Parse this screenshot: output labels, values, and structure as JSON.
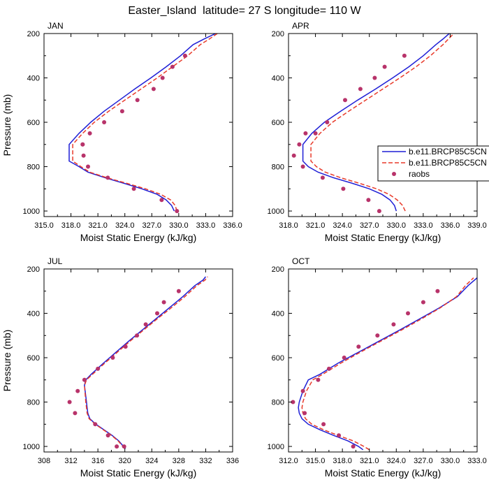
{
  "title": "Easter_Island  latitude= 27 S longitude= 110 W",
  "colors": {
    "model1": "#1f1fd6",
    "model2": "#e83a2a",
    "raobs": "#b8336a"
  },
  "legend": [
    "b.e11.BRCP85C5CN",
    "b.e11.BRCP85C5CN",
    "raobs"
  ],
  "chart_data": [
    {
      "type": "line",
      "panel": "JAN",
      "xlabel": "Moist Static Energy (kJ/kg)",
      "ylabel": "Pressure (mb)",
      "xlim": [
        315,
        336
      ],
      "ylim": [
        200,
        1025
      ],
      "y_inverted": true,
      "xticks": [
        "315.0",
        "318.0",
        "321.0",
        "324.0",
        "327.0",
        "330.0",
        "333.0",
        "336.0"
      ],
      "yticks": [
        "200",
        "400",
        "600",
        "800",
        "1000"
      ],
      "series": [
        {
          "name": "b.e11.BRCP85C5CN",
          "style": "solid",
          "x": [
            329.5,
            329.2,
            328.6,
            327.6,
            325.9,
            323.9,
            321.8,
            319.9,
            318.9,
            317.8,
            317.8,
            318.9,
            320.2,
            321.7,
            323.4,
            325.1,
            326.9,
            328.6,
            330.2,
            331.6,
            332.8,
            334.1
          ],
          "y": [
            1000,
            975,
            950,
            925,
            900,
            875,
            850,
            825,
            800,
            775,
            700,
            650,
            600,
            550,
            500,
            450,
            400,
            350,
            300,
            250,
            225,
            200
          ]
        },
        {
          "name": "b.e11.BRCP85C5CN",
          "style": "dashed",
          "x": [
            329.8,
            329.6,
            329.1,
            328.0,
            326.3,
            324.2,
            322.0,
            320.1,
            319.1,
            318.2,
            318.2,
            319.3,
            320.6,
            322.2,
            324.0,
            325.8,
            327.6,
            329.3,
            331.0,
            332.4,
            333.4,
            334.3
          ],
          "y": [
            1000,
            975,
            950,
            925,
            900,
            875,
            850,
            825,
            800,
            775,
            700,
            650,
            600,
            550,
            500,
            450,
            400,
            350,
            300,
            250,
            225,
            200
          ]
        },
        {
          "name": "raobs",
          "style": "dots",
          "x": [
            329.8,
            328.1,
            325.0,
            322.1,
            319.9,
            319.4,
            319.3,
            319.3,
            320.1,
            321.7,
            323.7,
            325.4,
            327.2,
            328.2,
            329.3,
            330.7
          ],
          "y": [
            1000,
            950,
            900,
            850,
            800,
            750,
            700,
            700,
            650,
            600,
            550,
            500,
            450,
            400,
            350,
            300
          ]
        }
      ]
    },
    {
      "type": "line",
      "panel": "APR",
      "xlabel": "Moist Static Energy (kJ/kg)",
      "ylabel": "",
      "xlim": [
        318,
        339
      ],
      "ylim": [
        200,
        1025
      ],
      "y_inverted": true,
      "xticks": [
        "318.0",
        "321.0",
        "324.0",
        "327.0",
        "330.0",
        "333.0",
        "336.0",
        "339.0"
      ],
      "yticks": [
        "200",
        "400",
        "600",
        "800",
        "1000"
      ],
      "series": [
        {
          "name": "b.e11.BRCP85C5CN",
          "style": "solid",
          "x": [
            330.0,
            329.8,
            329.3,
            328.4,
            327.0,
            325.1,
            323.0,
            321.3,
            320.2,
            319.6,
            319.6,
            320.6,
            322.0,
            323.8,
            325.7,
            327.7,
            329.6,
            331.4,
            333.0,
            334.4,
            335.2,
            335.9
          ],
          "y": [
            1000,
            975,
            950,
            925,
            900,
            875,
            850,
            825,
            800,
            775,
            700,
            650,
            600,
            550,
            500,
            450,
            400,
            350,
            300,
            250,
            225,
            200
          ]
        },
        {
          "name": "b.e11.BRCP85C5CN",
          "style": "dashed",
          "x": [
            331.0,
            330.7,
            330.1,
            329.2,
            327.8,
            325.9,
            323.8,
            322.1,
            321.1,
            320.5,
            320.5,
            321.5,
            322.9,
            324.7,
            326.6,
            328.5,
            330.4,
            332.2,
            333.8,
            335.2,
            335.8,
            336.4
          ],
          "y": [
            1000,
            975,
            950,
            925,
            900,
            875,
            850,
            825,
            800,
            775,
            700,
            650,
            600,
            550,
            500,
            450,
            400,
            350,
            300,
            250,
            225,
            200
          ]
        },
        {
          "name": "raobs",
          "style": "dots",
          "x": [
            328.1,
            326.9,
            324.1,
            321.8,
            319.6,
            318.6,
            319.2,
            319.9,
            321.0,
            322.3,
            324.3,
            326.0,
            327.6,
            328.7,
            330.9
          ],
          "y": [
            1000,
            950,
            900,
            850,
            800,
            750,
            700,
            650,
            650,
            600,
            500,
            450,
            400,
            350,
            300
          ]
        }
      ]
    },
    {
      "type": "line",
      "panel": "JUL",
      "xlabel": "Moist Static Energy (kJ/kg)",
      "ylabel": "Pressure (mb)",
      "xlim": [
        308,
        336
      ],
      "ylim": [
        200,
        1025
      ],
      "y_inverted": true,
      "xticks": [
        "308",
        "312",
        "316",
        "320",
        "324",
        "328",
        "332",
        "336"
      ],
      "yticks": [
        "200",
        "400",
        "600",
        "800",
        "1000"
      ],
      "series": [
        {
          "name": "b.e11.BRCP85C5CN",
          "style": "solid",
          "x": [
            320.1,
            319.8,
            319.1,
            318.1,
            316.9,
            315.7,
            314.8,
            314.5,
            314.4,
            314.3,
            314.0,
            314.2,
            315.0,
            316.8,
            318.7,
            320.6,
            322.6,
            324.6,
            326.6,
            328.6,
            330.4,
            331.6,
            332.0
          ],
          "y": [
            1010,
            1000,
            975,
            950,
            925,
            900,
            875,
            850,
            825,
            800,
            725,
            700,
            675,
            625,
            575,
            525,
            475,
            425,
            375,
            325,
            275,
            250,
            235
          ]
        },
        {
          "name": "b.e11.BRCP85C5CN",
          "style": "dashed",
          "x": [
            320.0,
            319.7,
            319.0,
            318.0,
            316.8,
            315.6,
            314.7,
            314.4,
            314.3,
            314.2,
            314.0,
            314.3,
            315.2,
            317.0,
            318.9,
            320.8,
            322.8,
            324.8,
            326.9,
            328.9,
            330.7,
            331.9,
            332.3
          ],
          "y": [
            1010,
            1000,
            975,
            950,
            925,
            900,
            875,
            850,
            825,
            800,
            725,
            700,
            675,
            625,
            575,
            525,
            475,
            425,
            375,
            325,
            275,
            250,
            235
          ]
        },
        {
          "name": "raobs",
          "style": "dots",
          "x": [
            319.9,
            318.8,
            317.5,
            315.6,
            312.6,
            311.8,
            313.0,
            314.0,
            316.0,
            318.2,
            320.1,
            321.8,
            323.1,
            324.8,
            325.8,
            328.0
          ],
          "y": [
            1000,
            1000,
            950,
            900,
            850,
            800,
            750,
            700,
            650,
            600,
            550,
            500,
            450,
            400,
            350,
            300
          ]
        }
      ]
    },
    {
      "type": "line",
      "panel": "OCT",
      "xlabel": "Moist Static Energy (kJ/kg)",
      "ylabel": "",
      "xlim": [
        312,
        333
      ],
      "ylim": [
        200,
        1025
      ],
      "y_inverted": true,
      "xticks": [
        "312.0",
        "315.0",
        "318.0",
        "321.0",
        "324.0",
        "327.0",
        "330.0",
        "333.0"
      ],
      "yticks": [
        "200",
        "400",
        "600",
        "800",
        "1000"
      ],
      "series": [
        {
          "name": "b.e11.BRCP85C5CN",
          "style": "solid",
          "x": [
            320.3,
            319.8,
            318.6,
            317.0,
            315.5,
            314.2,
            313.5,
            313.2,
            313.1,
            313.2,
            313.6,
            314.2,
            315.5,
            317.5,
            319.8,
            322.1,
            324.4,
            326.6,
            328.8,
            330.8,
            332.0,
            333.0
          ],
          "y": [
            1015,
            1000,
            975,
            950,
            925,
            900,
            875,
            850,
            825,
            800,
            750,
            700,
            675,
            625,
            575,
            525,
            475,
            425,
            375,
            325,
            275,
            240
          ]
        },
        {
          "name": "b.e11.BRCP85C5CN",
          "style": "dashed",
          "x": [
            321.0,
            320.4,
            319.2,
            317.5,
            315.9,
            314.6,
            313.9,
            313.6,
            313.5,
            313.6,
            314.0,
            314.7,
            315.8,
            317.8,
            320.0,
            322.3,
            324.6,
            326.8,
            328.9,
            330.7,
            331.7,
            332.6
          ],
          "y": [
            1015,
            1000,
            975,
            950,
            925,
            900,
            875,
            850,
            825,
            800,
            750,
            700,
            675,
            625,
            575,
            525,
            475,
            425,
            375,
            325,
            275,
            240
          ]
        },
        {
          "name": "raobs",
          "style": "dots",
          "x": [
            319.2,
            317.6,
            315.9,
            313.8,
            312.5,
            313.6,
            315.3,
            316.5,
            318.2,
            319.8,
            321.9,
            323.7,
            325.3,
            327.0,
            328.6
          ],
          "y": [
            1000,
            950,
            900,
            850,
            800,
            750,
            700,
            650,
            600,
            550,
            500,
            450,
            400,
            350,
            300
          ]
        }
      ]
    }
  ]
}
